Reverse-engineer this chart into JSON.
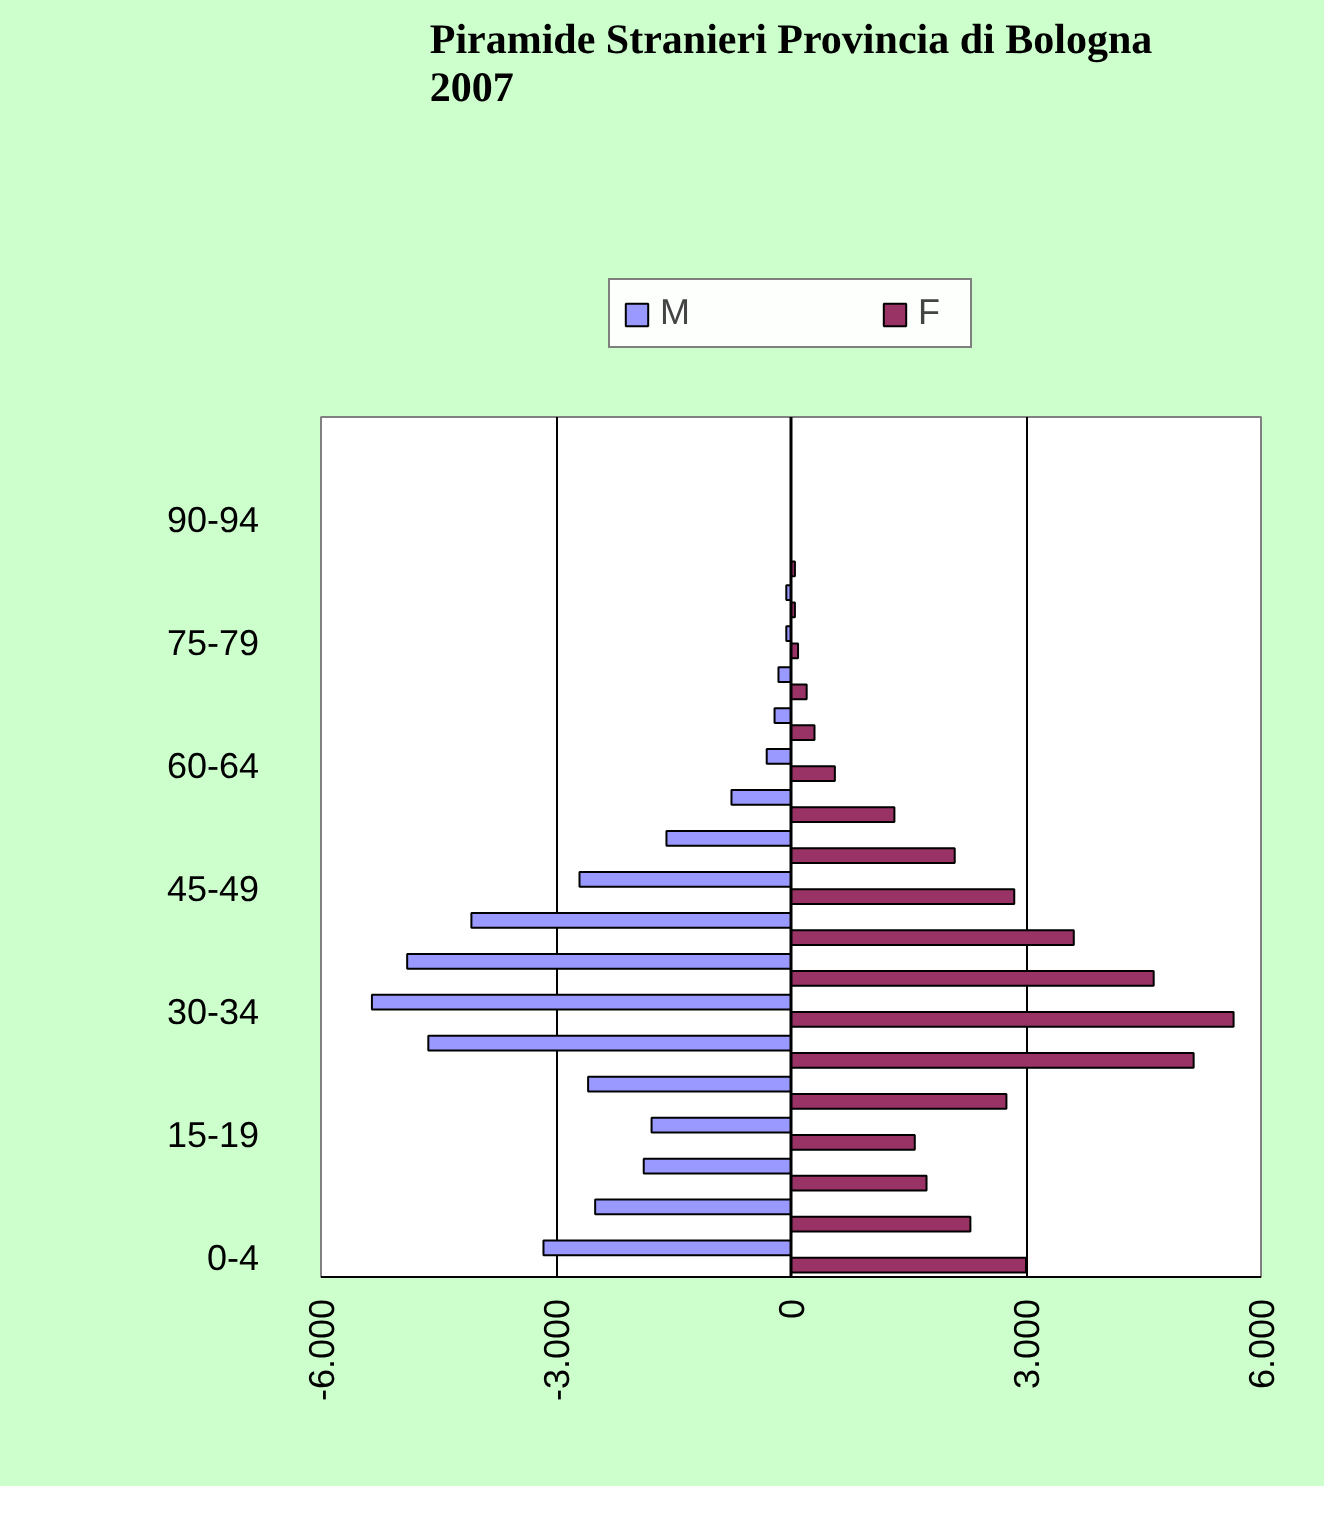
{
  "chart_data": {
    "type": "bar",
    "orientation": "horizontal",
    "title": "Piramide Stranieri Provincia di Bologna\n2007",
    "categories": [
      null,
      null,
      "90-94",
      null,
      null,
      "75-79",
      null,
      null,
      "60-64",
      null,
      null,
      "45-49",
      null,
      null,
      "30-34",
      null,
      null,
      "15-19",
      null,
      null,
      "0-4"
    ],
    "series": [
      {
        "name": "M",
        "color": "#9999ff",
        "values": [
          0,
          0,
          0,
          null,
          -60,
          -60,
          -160,
          -210,
          -310,
          -760,
          -1590,
          -2700,
          -4080,
          -4900,
          -5350,
          -4630,
          -2590,
          -1780,
          -1880,
          -2500,
          -3160
        ]
      },
      {
        "name": "F",
        "color": "#993366",
        "values": [
          0,
          0,
          0,
          50,
          50,
          90,
          200,
          300,
          560,
          1320,
          2090,
          2850,
          3610,
          4630,
          5650,
          5140,
          2750,
          1580,
          1730,
          2290,
          3000
        ]
      }
    ],
    "xlim": [
      -6000,
      6000
    ],
    "xticks": [
      {
        "value": -6000,
        "label": "-6.000"
      },
      {
        "value": -3000,
        "label": "-3.000"
      },
      0,
      {
        "value": 3000,
        "label": "3.000"
      },
      {
        "value": 6000,
        "label": "6.000"
      }
    ],
    "grid": "x",
    "legend": "top"
  }
}
